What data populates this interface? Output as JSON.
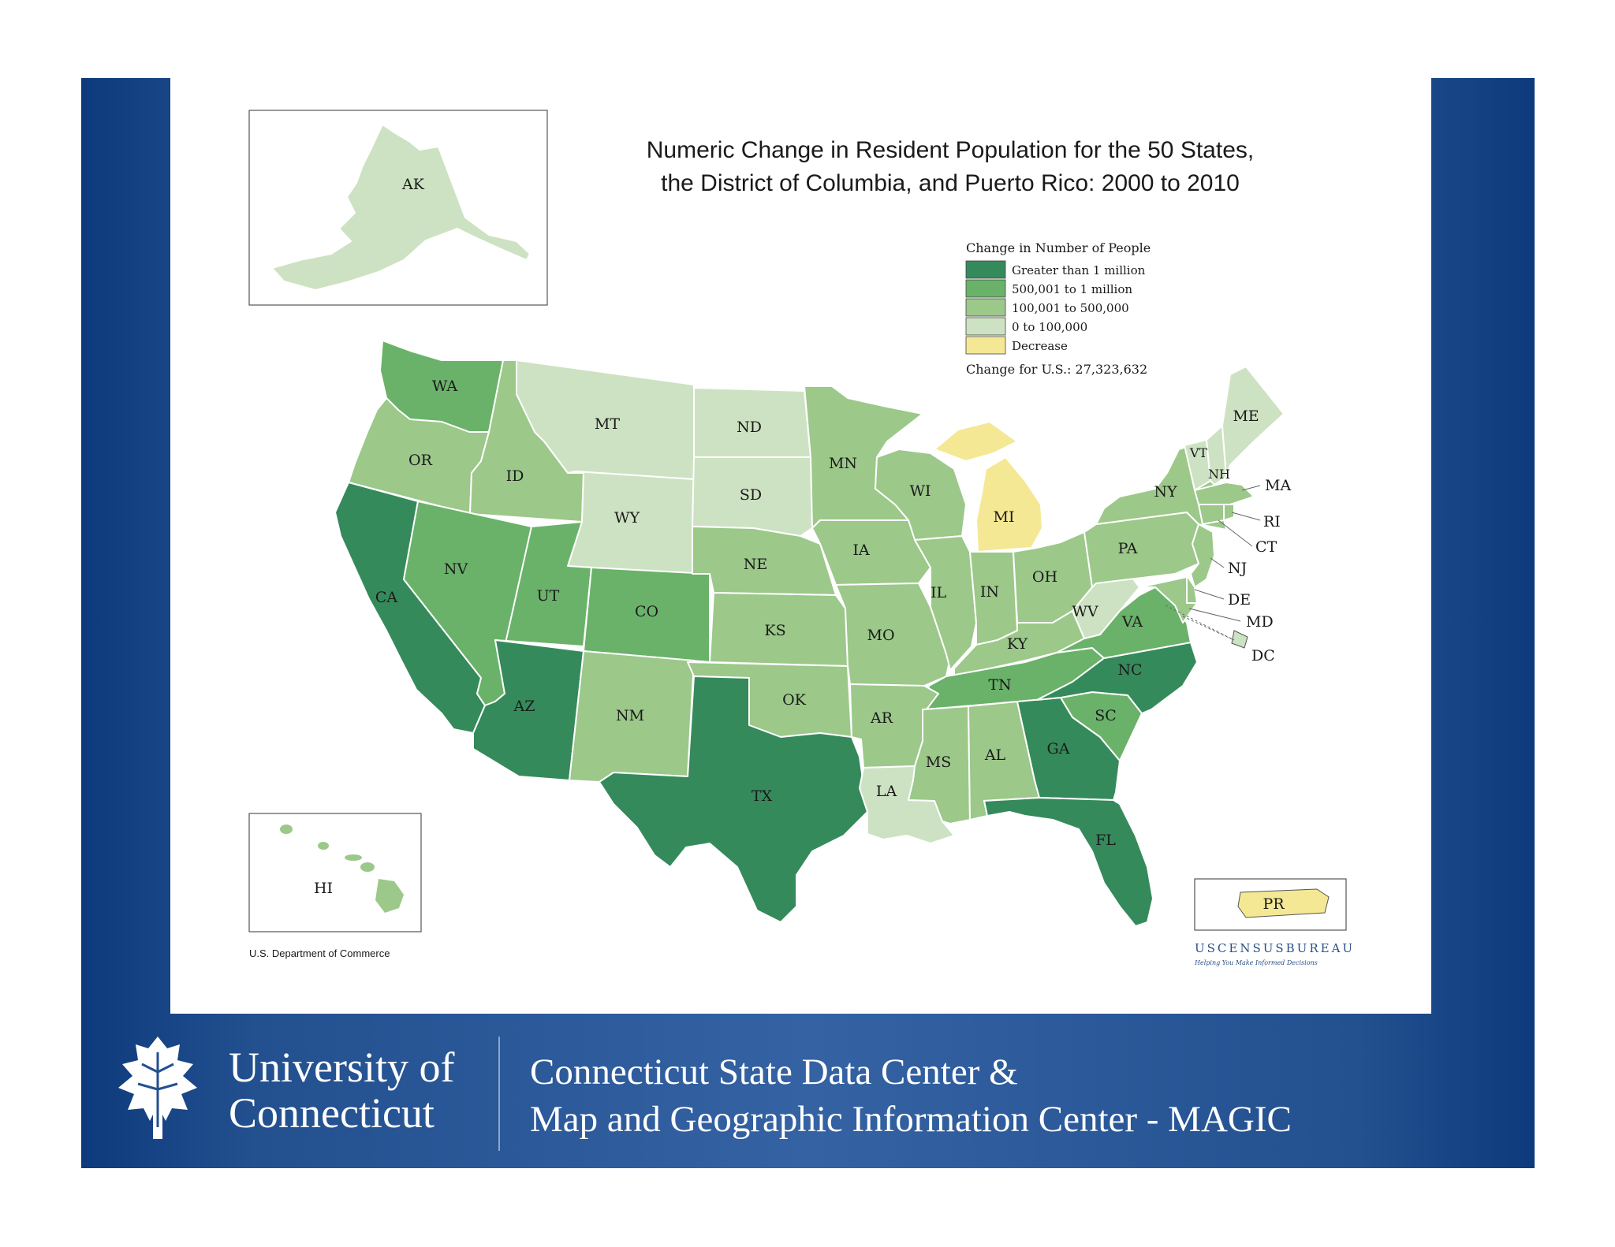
{
  "title_line1": "Numeric Change in Resident Population for the 50 States,",
  "title_line2": "the District of Columbia, and Puerto Rico:  2000 to 2010",
  "legend": {
    "title": "Change in Number of People",
    "items": [
      {
        "label": "Greater than 1 million",
        "color": "#358a5b"
      },
      {
        "label": "500,001 to 1 million",
        "color": "#6ab26a"
      },
      {
        "label": "100,001 to 500,000",
        "color": "#9cc88a"
      },
      {
        "label": "0 to 100,000",
        "color": "#cde2c2"
      },
      {
        "label": "Decrease",
        "color": "#f5e894"
      }
    ],
    "us_change": "Change for U.S.:  27,323,632"
  },
  "states": {
    "WA": "WA",
    "OR": "OR",
    "CA": "CA",
    "ID": "ID",
    "NV": "NV",
    "MT": "MT",
    "WY": "WY",
    "UT": "UT",
    "AZ": "AZ",
    "CO": "CO",
    "NM": "NM",
    "ND": "ND",
    "SD": "SD",
    "NE": "NE",
    "KS": "KS",
    "OK": "OK",
    "TX": "TX",
    "MN": "MN",
    "IA": "IA",
    "MO": "MO",
    "AR": "AR",
    "LA": "LA",
    "WI": "WI",
    "IL": "IL",
    "MI": "MI",
    "IN": "IN",
    "OH": "OH",
    "KY": "KY",
    "TN": "TN",
    "MS": "MS",
    "AL": "AL",
    "GA": "GA",
    "FL": "FL",
    "SC": "SC",
    "NC": "NC",
    "VA": "VA",
    "WV": "WV",
    "PA": "PA",
    "NY": "NY",
    "VT": "VT",
    "NH": "NH",
    "ME": "ME",
    "MA": "MA",
    "RI": "RI",
    "CT": "CT",
    "NJ": "NJ",
    "DE": "DE",
    "MD": "MD",
    "DC": "DC",
    "AK": "AK",
    "HI": "HI",
    "PR": "PR"
  },
  "dept": "U.S. Department of Commerce",
  "census_logo": "USCENSUSBUREAU",
  "census_tagline": "Helping You Make Informed Decisions",
  "footer": {
    "university_line1": "University of",
    "university_line2": "Connecticut",
    "center_line1": "Connecticut State Data Center &",
    "center_line2": "Map and Geographic Information Center - MAGIC"
  },
  "colors": {
    "gt1m": "#358a5b",
    "500k1m": "#6ab26a",
    "100k500k": "#9cc88a",
    "0to100k": "#cde2c2",
    "decrease": "#f5e894",
    "slide_blue": "#23508f"
  }
}
